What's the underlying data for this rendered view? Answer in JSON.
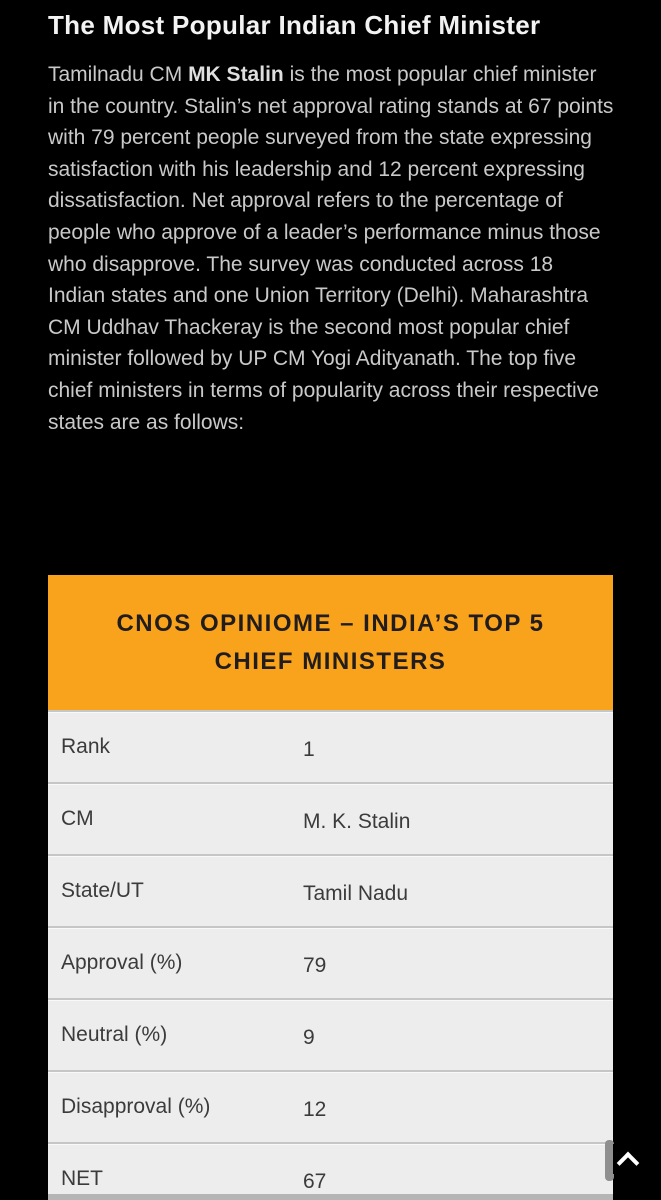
{
  "page": {
    "background_color": "#000000",
    "accent_orange": "#F9A21B",
    "row_background": "#EDEDED",
    "divider_color": "#C6C6C6"
  },
  "article": {
    "title": "The Most Popular Indian Chief Minister",
    "paragraph": {
      "prefix": "Tamilnadu CM ",
      "bold": "MK Stalin",
      "rest": " is the most popular chief minister in the country. Stalin’s net approval rating stands at 67 points with 79 percent people surveyed from the state expressing satisfaction with his leadership and 12 percent expressing dissatisfaction. Net approval refers to the percentage of people who approve of a leader’s performance minus those who disapprove. The survey was conducted across 18 Indian states and one Union Territory (Delhi). Maharashtra CM Uddhav Thackeray is the second most popular chief minister followed by UP CM Yogi Adityanath. The top five chief ministers in terms of popularity across their respective states are as follows:"
    }
  },
  "table": {
    "header": "CNOS OPINIOME – INDIA’S TOP 5 CHIEF MINISTERS",
    "rows": [
      {
        "label": "Rank",
        "value": "1"
      },
      {
        "label": "CM",
        "value": "M. K. Stalin"
      },
      {
        "label": "State/UT",
        "value": "Tamil Nadu"
      },
      {
        "label": "Approval (%)",
        "value": "79"
      },
      {
        "label": "Neutral (%)",
        "value": "9"
      },
      {
        "label": "Disapproval (%)",
        "value": "12"
      },
      {
        "label": "NET",
        "value": "67"
      }
    ]
  },
  "controls": {
    "back_to_top_icon": "chevron-up"
  }
}
